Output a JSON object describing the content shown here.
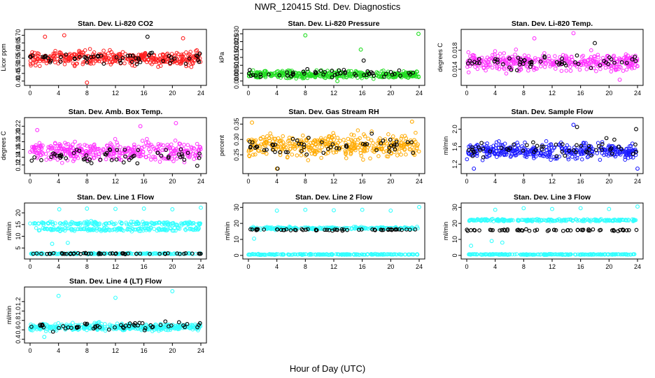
{
  "figure": {
    "title": "NWR_120415  Std. Dev. Diagnostics",
    "xlabel": "Hour of Day (UTC)"
  },
  "colors": {
    "red": "#ff2020",
    "green": "#22dd22",
    "magenta": "#ff33ff",
    "orange": "#ffaa00",
    "blue": "#1a1aff",
    "cyan": "#33ffff",
    "outlier": "#000000",
    "axis": "#000000"
  },
  "chart_data": [
    {
      "type": "scatter",
      "title": "Stan. Dev. Li-820 CO2",
      "ylabel": "Licor ppm",
      "xlim": [
        0,
        24
      ],
      "xticks": [
        0,
        4,
        8,
        12,
        16,
        20,
        24
      ],
      "ylim": [
        0.39,
        0.72
      ],
      "yticks": [
        "0.40",
        "0.45",
        "0.50",
        "0.55",
        "0.60",
        "0.65",
        "0.70"
      ],
      "series": [
        {
          "color": "red",
          "bands": [
            {
              "center": 0.55,
              "spread": 0.05
            }
          ],
          "extremes": [
            [
              4.8,
              0.7
            ],
            [
              2.1,
              0.69
            ],
            [
              8.0,
              0.39
            ],
            [
              21.5,
              0.68
            ]
          ]
        },
        {
          "color": "outlier",
          "bands": [
            {
              "center": 0.55,
              "spread": 0.04
            }
          ],
          "extremes": [
            [
              16.5,
              0.69
            ]
          ]
        }
      ]
    },
    {
      "type": "scatter",
      "title": "Stan. Dev. Li-820 Pressure",
      "ylabel": "kPa",
      "xlim": [
        0,
        24
      ],
      "xticks": [
        0,
        4,
        8,
        12,
        16,
        20,
        24
      ],
      "ylim": [
        -0.001,
        0.031
      ],
      "yticks": [
        "0.000",
        "0.005",
        "0.010",
        "0.015",
        "0.020",
        "0.025",
        "0.030"
      ],
      "series": [
        {
          "color": "green",
          "bands": [
            {
              "center": 0.004,
              "spread": 0.0025
            }
          ],
          "extremes": [
            [
              8.0,
              0.029
            ],
            [
              23.9,
              0.03
            ],
            [
              15.8,
              0.02
            ],
            [
              12.5,
              0.0
            ]
          ]
        },
        {
          "color": "outlier",
          "bands": [
            {
              "center": 0.005,
              "spread": 0.0025
            }
          ],
          "extremes": [
            [
              16.2,
              0.013
            ]
          ]
        }
      ]
    },
    {
      "type": "scatter",
      "title": "Stan. Dev. Li-820 Temp.",
      "ylabel": "degrees C",
      "xlim": [
        0,
        24
      ],
      "xticks": [
        0,
        4,
        8,
        12,
        16,
        20,
        24
      ],
      "ylim": [
        0.0112,
        0.0218
      ],
      "yticks": [
        "0.014",
        "0.018"
      ],
      "series": [
        {
          "color": "magenta",
          "bands": [
            {
              "center": 0.0155,
              "spread": 0.002
            }
          ],
          "extremes": [
            [
              15.0,
              0.0216
            ],
            [
              9.5,
              0.0205
            ],
            [
              21.5,
              0.0118
            ]
          ]
        },
        {
          "color": "outlier",
          "bands": [
            {
              "center": 0.0155,
              "spread": 0.0015
            }
          ],
          "extremes": [
            [
              18.0,
              0.0195
            ]
          ]
        }
      ]
    },
    {
      "type": "scatter",
      "title": "Stan. Dev. Amb. Box Temp.",
      "ylabel": "degrees C",
      "xlim": [
        0,
        24
      ],
      "xticks": [
        0,
        4,
        8,
        12,
        16,
        20,
        24
      ],
      "ylim": [
        0.105,
        0.235
      ],
      "yticks": [
        "0.12",
        "0.14",
        "0.16",
        "0.18",
        "0.20",
        "0.22"
      ],
      "series": [
        {
          "color": "magenta",
          "bands": [
            {
              "center": 0.155,
              "spread": 0.025
            }
          ],
          "extremes": [
            [
              20.5,
              0.228
            ],
            [
              15.5,
              0.22
            ],
            [
              1.0,
              0.21
            ]
          ]
        },
        {
          "color": "outlier",
          "bands": [
            {
              "center": 0.145,
              "spread": 0.02
            }
          ],
          "extremes": [
            [
              23.5,
              0.118
            ]
          ]
        }
      ]
    },
    {
      "type": "scatter",
      "title": "Stan. Dev. Gas Stream RH",
      "ylabel": "percent",
      "xlim": [
        0,
        24
      ],
      "xticks": [
        0,
        4,
        8,
        12,
        16,
        20,
        24
      ],
      "ylim": [
        0.198,
        0.362
      ],
      "yticks": [
        "0.25",
        "0.30",
        "0.35"
      ],
      "series": [
        {
          "color": "orange",
          "bands": [
            {
              "center": 0.28,
              "spread": 0.04
            }
          ],
          "extremes": [
            [
              0.5,
              0.355
            ],
            [
              23.0,
              0.358
            ],
            [
              4.0,
              0.205
            ]
          ]
        },
        {
          "color": "outlier",
          "bands": [
            {
              "center": 0.28,
              "spread": 0.03
            }
          ],
          "extremes": [
            [
              4.1,
              0.205
            ]
          ]
        }
      ]
    },
    {
      "type": "scatter",
      "title": "Stan. Dev. Sample Flow",
      "ylabel": "ml/min",
      "xlim": [
        0,
        24
      ],
      "xticks": [
        0,
        4,
        8,
        12,
        16,
        20,
        24
      ],
      "ylim": [
        1.05,
        2.2
      ],
      "yticks": [
        "1.2",
        "1.6",
        "2.0"
      ],
      "series": [
        {
          "color": "blue",
          "bands": [
            {
              "center": 1.5,
              "spread": 0.2
            }
          ],
          "extremes": [
            [
              15.0,
              2.1
            ],
            [
              1.0,
              1.1
            ],
            [
              24.0,
              1.1
            ]
          ]
        },
        {
          "color": "outlier",
          "bands": [
            {
              "center": 1.55,
              "spread": 0.2
            }
          ],
          "extremes": [
            [
              23.8,
              2.0
            ],
            [
              15.5,
              2.05
            ]
          ]
        }
      ]
    },
    {
      "type": "scatter",
      "title": "Stan. Dev. Line 1 Flow",
      "ylabel": "ml/min",
      "xlim": [
        0,
        24
      ],
      "xticks": [
        0,
        4,
        8,
        12,
        16,
        20,
        24
      ],
      "ylim": [
        1.5,
        23
      ],
      "yticks": [
        "5",
        "10",
        "15",
        "20"
      ],
      "series": [
        {
          "color": "cyan",
          "bands": [
            {
              "center": 15.5,
              "spread": 0.8
            },
            {
              "center": 13.0,
              "spread": 0.8
            },
            {
              "center": 2.6,
              "spread": 0.3
            }
          ],
          "extremes": [
            [
              4.1,
              21.5
            ],
            [
              8.0,
              21.8
            ],
            [
              12.0,
              21.7
            ],
            [
              16.0,
              21.8
            ],
            [
              20.0,
              21.5
            ],
            [
              24.0,
              22.2
            ],
            [
              3.1,
              6.8
            ],
            [
              5.3,
              7.2
            ]
          ]
        },
        {
          "color": "outlier",
          "bands": [
            {
              "center": 2.6,
              "spread": 0.25
            }
          ],
          "extremes": []
        }
      ]
    },
    {
      "type": "scatter",
      "title": "Stan. Dev. Line 2 Flow",
      "ylabel": "ml/min",
      "xlim": [
        0,
        24
      ],
      "xticks": [
        0,
        4,
        8,
        12,
        16,
        20,
        24
      ],
      "ylim": [
        -0.5,
        31
      ],
      "yticks": [
        "0",
        "10",
        "20",
        "30"
      ],
      "series": [
        {
          "color": "cyan",
          "bands": [
            {
              "center": 17.0,
              "spread": 0.9
            },
            {
              "center": 0.6,
              "spread": 0.3
            }
          ],
          "extremes": [
            [
              4.0,
              28.0
            ],
            [
              8.0,
              28.5
            ],
            [
              12.0,
              28.2
            ],
            [
              16.0,
              28.5
            ],
            [
              20.0,
              28.0
            ],
            [
              24.0,
              30.2
            ],
            [
              0.8,
              10.5
            ]
          ]
        },
        {
          "color": "outlier",
          "bands": [
            {
              "center": 16.0,
              "spread": 0.5
            }
          ],
          "extremes": []
        }
      ]
    },
    {
      "type": "scatter",
      "title": "Stan. Dev. Line 3 Flow",
      "ylabel": "ml/min",
      "xlim": [
        0,
        24
      ],
      "xticks": [
        0,
        4,
        8,
        12,
        16,
        20,
        24
      ],
      "ylim": [
        -0.5,
        31
      ],
      "yticks": [
        "0",
        "10",
        "20",
        "30"
      ],
      "series": [
        {
          "color": "cyan",
          "bands": [
            {
              "center": 22.0,
              "spread": 0.8
            },
            {
              "center": 0.6,
              "spread": 0.3
            }
          ],
          "extremes": [
            [
              4.0,
              28.5
            ],
            [
              8.0,
              29.5
            ],
            [
              12.0,
              29.0
            ],
            [
              16.0,
              29.5
            ],
            [
              20.0,
              29.0
            ],
            [
              24.0,
              30.5
            ],
            [
              0.6,
              6.0
            ],
            [
              3.5,
              9.0
            ],
            [
              5.0,
              8.0
            ]
          ]
        },
        {
          "color": "outlier",
          "bands": [
            {
              "center": 15.8,
              "spread": 0.6
            }
          ],
          "extremes": []
        }
      ]
    },
    {
      "type": "scatter",
      "title": "Stan. Dev. Line 4 (LT) Flow",
      "ylabel": "ml/min",
      "xlim": [
        0,
        24
      ],
      "xticks": [
        0,
        4,
        8,
        12,
        16,
        20,
        24
      ],
      "ylim": [
        0.38,
        1.45
      ],
      "yticks": [
        "0.4",
        "0.6",
        "0.8",
        "1.0",
        "1.2"
      ],
      "series": [
        {
          "color": "cyan",
          "bands": [
            {
              "center": 0.66,
              "spread": 0.08
            }
          ],
          "extremes": [
            [
              20.0,
              1.42
            ],
            [
              12.0,
              1.28
            ],
            [
              4.0,
              1.32
            ],
            [
              2.0,
              0.45
            ]
          ]
        },
        {
          "color": "outlier",
          "bands": [
            {
              "center": 0.68,
              "spread": 0.1
            }
          ],
          "extremes": []
        }
      ]
    }
  ]
}
